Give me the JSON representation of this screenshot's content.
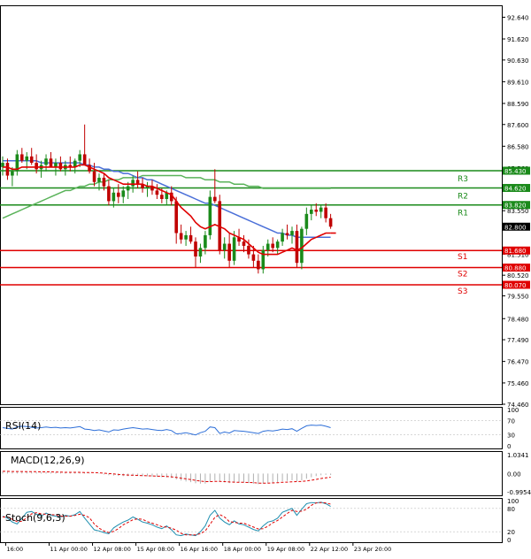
{
  "chart_data": {
    "type": "candlestick",
    "instrument_note": "",
    "price_axis": {
      "ylim": [
        74.46,
        93.2
      ],
      "ticks": [
        "92.640",
        "91.620",
        "90.630",
        "89.610",
        "88.590",
        "87.600",
        "86.580",
        "85.560",
        "84.570",
        "83.550",
        "82.800",
        "81.510",
        "80.520",
        "79.550",
        "78.480",
        "77.490",
        "76.470",
        "75.460",
        "74.460"
      ],
      "tick_values": [
        92.64,
        91.62,
        90.63,
        89.61,
        88.59,
        87.6,
        86.58,
        85.56,
        84.57,
        83.55,
        82.8,
        81.51,
        80.52,
        79.55,
        78.48,
        77.49,
        76.47,
        75.46,
        74.46
      ]
    },
    "time_axis": {
      "ticks": [
        "16:00",
        "11 Apr 00:00",
        "12 Apr 08:00",
        "15 Apr 08:00",
        "16 Apr 16:00",
        "18 Apr 00:00",
        "19 Apr 08:00",
        "22 Apr 12:00",
        "23 Apr 20:00"
      ],
      "tick_bars": [
        1,
        10,
        19,
        28,
        37,
        46,
        55,
        64,
        73
      ]
    },
    "levels": [
      {
        "name": "R3",
        "value": 85.43,
        "color": "#1a8a1a",
        "label": "85.430"
      },
      {
        "name": "R2",
        "value": 84.62,
        "color": "#1a8a1a",
        "label": "84.620"
      },
      {
        "name": "R1",
        "value": 83.82,
        "color": "#1a8a1a",
        "label": "83.820"
      },
      {
        "name": "S1",
        "value": 81.68,
        "color": "#e00000",
        "label": "81.680"
      },
      {
        "name": "S2",
        "value": 80.88,
        "color": "#e00000",
        "label": "80.880"
      },
      {
        "name": "S3",
        "value": 80.07,
        "color": "#e00000",
        "label": "80.070"
      }
    ],
    "current_price": {
      "value": 82.8,
      "label": "82.800"
    },
    "candles": [
      [
        85.6,
        86.1,
        85.2,
        85.8
      ],
      [
        85.8,
        86.0,
        85.0,
        85.2
      ],
      [
        85.2,
        85.6,
        84.7,
        85.4
      ],
      [
        85.4,
        86.4,
        85.2,
        86.2
      ],
      [
        86.2,
        86.5,
        85.8,
        85.9
      ],
      [
        85.9,
        86.3,
        85.5,
        86.1
      ],
      [
        86.1,
        86.5,
        85.7,
        85.8
      ],
      [
        85.8,
        86.2,
        85.3,
        85.5
      ],
      [
        85.5,
        85.9,
        85.1,
        85.7
      ],
      [
        85.7,
        86.2,
        85.4,
        86.0
      ],
      [
        86.0,
        86.3,
        85.6,
        85.6
      ],
      [
        85.6,
        86.0,
        85.2,
        85.8
      ],
      [
        85.8,
        86.1,
        85.4,
        85.5
      ],
      [
        85.5,
        85.9,
        85.2,
        85.7
      ],
      [
        85.7,
        86.1,
        85.4,
        85.6
      ],
      [
        85.6,
        86.0,
        85.3,
        85.9
      ],
      [
        85.9,
        86.4,
        85.6,
        86.2
      ],
      [
        86.2,
        87.6,
        85.7,
        85.7
      ],
      [
        85.7,
        86.0,
        85.3,
        85.4
      ],
      [
        85.4,
        85.8,
        84.7,
        84.9
      ],
      [
        84.9,
        85.3,
        84.5,
        85.1
      ],
      [
        85.1,
        85.3,
        84.5,
        84.7
      ],
      [
        84.7,
        85.0,
        83.8,
        84.0
      ],
      [
        84.0,
        84.6,
        83.7,
        84.4
      ],
      [
        84.4,
        84.8,
        83.9,
        84.2
      ],
      [
        84.2,
        84.7,
        83.9,
        84.5
      ],
      [
        84.5,
        84.9,
        84.1,
        84.7
      ],
      [
        84.7,
        85.2,
        84.4,
        85.0
      ],
      [
        85.0,
        85.4,
        84.6,
        84.8
      ],
      [
        84.8,
        85.1,
        84.4,
        84.6
      ],
      [
        84.6,
        84.9,
        84.2,
        84.7
      ],
      [
        84.7,
        85.0,
        84.3,
        84.5
      ],
      [
        84.5,
        84.8,
        84.1,
        84.3
      ],
      [
        84.3,
        84.6,
        83.9,
        84.1
      ],
      [
        84.1,
        84.5,
        83.8,
        84.4
      ],
      [
        84.4,
        84.7,
        83.8,
        84.0
      ],
      [
        84.0,
        84.2,
        82.0,
        82.5
      ],
      [
        82.5,
        82.9,
        82.0,
        82.2
      ],
      [
        82.2,
        82.6,
        81.9,
        82.4
      ],
      [
        82.4,
        82.8,
        82.0,
        82.1
      ],
      [
        82.1,
        82.3,
        80.9,
        81.4
      ],
      [
        81.4,
        82.0,
        81.1,
        81.8
      ],
      [
        81.8,
        82.6,
        81.5,
        82.4
      ],
      [
        82.4,
        84.5,
        82.2,
        84.2
      ],
      [
        84.2,
        85.5,
        83.9,
        84.0
      ],
      [
        84.0,
        84.3,
        81.5,
        81.7
      ],
      [
        81.7,
        82.3,
        81.3,
        82.0
      ],
      [
        82.0,
        82.5,
        80.9,
        81.2
      ],
      [
        81.2,
        82.6,
        81.0,
        82.3
      ],
      [
        82.3,
        82.7,
        81.9,
        82.1
      ],
      [
        82.1,
        82.4,
        81.6,
        81.9
      ],
      [
        81.9,
        82.2,
        81.3,
        81.5
      ],
      [
        81.5,
        81.9,
        80.9,
        81.2
      ],
      [
        81.2,
        81.5,
        80.6,
        80.8
      ],
      [
        80.8,
        81.9,
        80.6,
        81.7
      ],
      [
        81.7,
        82.2,
        81.4,
        82.0
      ],
      [
        82.0,
        82.3,
        81.6,
        81.8
      ],
      [
        81.8,
        82.2,
        81.5,
        82.1
      ],
      [
        82.1,
        82.7,
        81.9,
        82.5
      ],
      [
        82.5,
        82.9,
        82.2,
        82.4
      ],
      [
        82.4,
        82.8,
        82.0,
        82.6
      ],
      [
        82.6,
        82.9,
        80.9,
        81.1
      ],
      [
        81.1,
        82.8,
        80.8,
        82.7
      ],
      [
        82.7,
        83.7,
        82.4,
        83.4
      ],
      [
        83.4,
        83.8,
        83.1,
        83.6
      ],
      [
        83.6,
        83.9,
        83.3,
        83.5
      ],
      [
        83.5,
        83.8,
        83.2,
        83.7
      ],
      [
        83.7,
        83.9,
        83.0,
        83.2
      ],
      [
        83.2,
        83.4,
        82.7,
        82.8
      ]
    ],
    "ma_red": [
      85.6,
      85.6,
      85.5,
      85.5,
      85.6,
      85.6,
      85.6,
      85.6,
      85.6,
      85.6,
      85.6,
      85.6,
      85.6,
      85.6,
      85.6,
      85.6,
      85.7,
      85.7,
      85.6,
      85.5,
      85.4,
      85.3,
      85.1,
      85.0,
      84.9,
      84.8,
      84.8,
      84.8,
      84.8,
      84.8,
      84.7,
      84.7,
      84.6,
      84.5,
      84.4,
      84.3,
      84.0,
      83.7,
      83.5,
      83.3,
      83.0,
      82.8,
      82.7,
      82.8,
      82.9,
      82.8,
      82.7,
      82.5,
      82.4,
      82.3,
      82.2,
      82.0,
      81.8,
      81.6,
      81.5,
      81.5,
      81.5,
      81.5,
      81.6,
      81.7,
      81.8,
      81.7,
      81.8,
      82.0,
      82.2,
      82.3,
      82.4,
      82.5,
      82.5
    ],
    "ma_blue": [
      85.9,
      85.9,
      85.9,
      85.9,
      85.9,
      85.9,
      85.9,
      85.9,
      85.8,
      85.8,
      85.8,
      85.8,
      85.8,
      85.8,
      85.8,
      85.8,
      85.8,
      85.7,
      85.7,
      85.6,
      85.6,
      85.5,
      85.5,
      85.4,
      85.4,
      85.3,
      85.3,
      85.2,
      85.1,
      85.1,
      85.0,
      85.0,
      84.9,
      84.8,
      84.7,
      84.6,
      84.5,
      84.4,
      84.3,
      84.2,
      84.1,
      84.0,
      83.9,
      83.9,
      83.8,
      83.7,
      83.6,
      83.5,
      83.4,
      83.3,
      83.2,
      83.1,
      83.0,
      82.9,
      82.8,
      82.7,
      82.6,
      82.5,
      82.5,
      82.4,
      82.4,
      82.3,
      82.3,
      82.3,
      82.3,
      82.3,
      82.3,
      82.3,
      82.3
    ],
    "ma_green": [
      83.2,
      83.3,
      83.4,
      83.5,
      83.6,
      83.7,
      83.8,
      83.9,
      84.0,
      84.1,
      84.2,
      84.3,
      84.4,
      84.5,
      84.5,
      84.6,
      84.7,
      84.7,
      84.8,
      84.8,
      84.9,
      84.9,
      85.0,
      85.0,
      85.0,
      85.1,
      85.1,
      85.1,
      85.1,
      85.2,
      85.2,
      85.2,
      85.2,
      85.2,
      85.2,
      85.2,
      85.2,
      85.2,
      85.1,
      85.1,
      85.1,
      85.1,
      85.0,
      85.0,
      85.0,
      84.9,
      84.9,
      84.9,
      84.8,
      84.8,
      84.8,
      84.7,
      84.7,
      84.7,
      84.6,
      84.6,
      84.6,
      84.6,
      84.6,
      84.6,
      84.6,
      84.6,
      84.6,
      84.6,
      84.6,
      84.6,
      84.6,
      84.6,
      84.6
    ],
    "rsi": {
      "label": "RSI(14)",
      "ticks": [
        "100",
        "70",
        "30",
        "0"
      ],
      "tick_values": [
        100,
        70,
        30,
        0
      ],
      "values": [
        50,
        48,
        46,
        52,
        54,
        53,
        51,
        49,
        50,
        52,
        50,
        51,
        49,
        50,
        49,
        51,
        53,
        46,
        45,
        42,
        44,
        41,
        38,
        44,
        43,
        46,
        48,
        50,
        48,
        46,
        47,
        45,
        43,
        42,
        45,
        42,
        33,
        34,
        36,
        33,
        30,
        36,
        40,
        52,
        50,
        34,
        38,
        35,
        42,
        41,
        40,
        38,
        36,
        34,
        40,
        42,
        41,
        43,
        46,
        45,
        47,
        40,
        48,
        55,
        57,
        56,
        57,
        54,
        50
      ]
    },
    "macd": {
      "label": "MACD(12,26,9)",
      "ticks": [
        "1.0341",
        "0.00",
        "-0.9954"
      ],
      "tick_values": [
        1.0341,
        0.0,
        -0.9954
      ],
      "hist": [
        0.1,
        0.09,
        0.08,
        0.08,
        0.09,
        0.09,
        0.08,
        0.07,
        0.07,
        0.08,
        0.07,
        0.07,
        0.06,
        0.06,
        0.06,
        0.06,
        0.07,
        0.05,
        0.03,
        0.0,
        -0.02,
        -0.05,
        -0.09,
        -0.11,
        -0.13,
        -0.14,
        -0.14,
        -0.13,
        -0.13,
        -0.14,
        -0.15,
        -0.16,
        -0.18,
        -0.2,
        -0.21,
        -0.24,
        -0.32,
        -0.38,
        -0.43,
        -0.47,
        -0.53,
        -0.55,
        -0.55,
        -0.45,
        -0.38,
        -0.44,
        -0.48,
        -0.52,
        -0.5,
        -0.5,
        -0.5,
        -0.52,
        -0.55,
        -0.58,
        -0.55,
        -0.52,
        -0.5,
        -0.47,
        -0.42,
        -0.4,
        -0.37,
        -0.42,
        -0.37,
        -0.28,
        -0.2,
        -0.14,
        -0.09,
        -0.07,
        -0.08
      ],
      "signal": [
        0.12,
        0.12,
        0.11,
        0.11,
        0.11,
        0.1,
        0.1,
        0.1,
        0.09,
        0.09,
        0.09,
        0.08,
        0.08,
        0.07,
        0.07,
        0.07,
        0.07,
        0.06,
        0.06,
        0.05,
        0.04,
        0.02,
        0.0,
        -0.02,
        -0.05,
        -0.07,
        -0.08,
        -0.09,
        -0.1,
        -0.11,
        -0.12,
        -0.13,
        -0.14,
        -0.15,
        -0.16,
        -0.18,
        -0.21,
        -0.25,
        -0.29,
        -0.33,
        -0.37,
        -0.41,
        -0.44,
        -0.44,
        -0.43,
        -0.43,
        -0.44,
        -0.46,
        -0.47,
        -0.48,
        -0.48,
        -0.49,
        -0.5,
        -0.52,
        -0.52,
        -0.52,
        -0.51,
        -0.5,
        -0.48,
        -0.47,
        -0.45,
        -0.44,
        -0.43,
        -0.4,
        -0.36,
        -0.32,
        -0.27,
        -0.23,
        -0.2
      ]
    },
    "stoch": {
      "label": "Stoch(9,6,3)",
      "ticks": [
        "100",
        "80",
        "20",
        "0"
      ],
      "tick_values": [
        100,
        80,
        20,
        0
      ],
      "k": [
        60,
        55,
        45,
        40,
        55,
        70,
        72,
        65,
        60,
        68,
        62,
        60,
        58,
        62,
        60,
        64,
        72,
        55,
        40,
        25,
        22,
        18,
        15,
        30,
        38,
        45,
        50,
        58,
        52,
        45,
        42,
        38,
        32,
        28,
        35,
        25,
        12,
        10,
        14,
        12,
        10,
        20,
        35,
        62,
        75,
        55,
        45,
        38,
        48,
        40,
        38,
        32,
        26,
        22,
        35,
        45,
        48,
        55,
        70,
        75,
        80,
        62,
        78,
        92,
        95,
        94,
        96,
        92,
        85
      ],
      "d": [
        58,
        58,
        52,
        46,
        47,
        56,
        66,
        69,
        66,
        65,
        64,
        63,
        60,
        60,
        60,
        62,
        65,
        62,
        56,
        40,
        29,
        22,
        18,
        21,
        28,
        38,
        44,
        51,
        53,
        52,
        46,
        42,
        38,
        33,
        32,
        29,
        24,
        16,
        12,
        12,
        12,
        15,
        22,
        39,
        57,
        64,
        58,
        46,
        44,
        42,
        42,
        37,
        32,
        27,
        28,
        34,
        43,
        49,
        58,
        67,
        75,
        72,
        73,
        78,
        88,
        94,
        95,
        94,
        91
      ]
    }
  }
}
